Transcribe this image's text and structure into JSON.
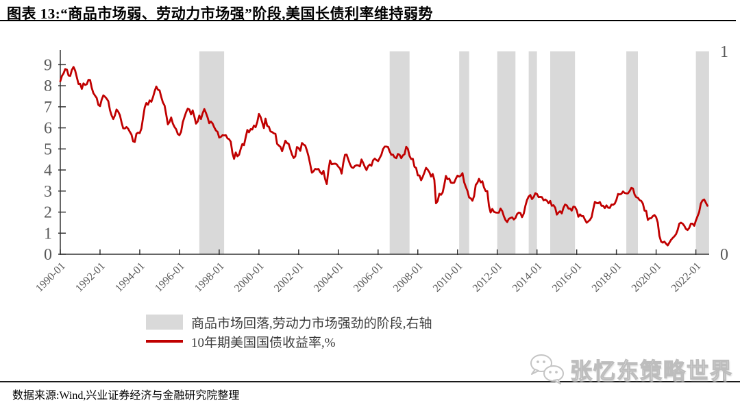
{
  "page": {
    "title": "图表 13:“商品市场弱、劳动力市场强”阶段,美国长债利率维持弱势"
  },
  "footer": {
    "source": "数据来源:Wind,兴业证券经济与金融研究院整理"
  },
  "watermark": {
    "icon": "wechat-icon",
    "label": "张忆东策略世界"
  },
  "chart_data": {
    "type": "line",
    "title": "图表 13:“商品市场弱、劳动力市场强”阶段,美国长债利率维持弱势",
    "grid": false,
    "legend_position": "bottom-center",
    "x_range": [
      1990.0,
      2022.67
    ],
    "x_tick_labels": [
      "1990-01",
      "1992-01",
      "1994-01",
      "1996-01",
      "1998-01",
      "2000-01",
      "2002-01",
      "2004-01",
      "2006-01",
      "2008-01",
      "2010-01",
      "2012-01",
      "2014-01",
      "2016-01",
      "2018-01",
      "2020-01",
      "2022-01"
    ],
    "left_axis": {
      "ticks": [
        0,
        1,
        2,
        3,
        4,
        5,
        6,
        7,
        8,
        9
      ],
      "range": [
        0,
        9.63
      ]
    },
    "right_axis": {
      "ticks": [
        0,
        1
      ],
      "range": [
        0,
        1
      ]
    },
    "band_color": "#d9d9d9",
    "bands": [
      {
        "start": "1997-01",
        "end": "1998-03"
      },
      {
        "start": "2006-08",
        "end": "2007-07"
      },
      {
        "start": "2010-02",
        "end": "2010-07"
      },
      {
        "start": "2012-01",
        "end": "2012-11"
      },
      {
        "start": "2013-08",
        "end": "2013-12"
      },
      {
        "start": "2014-09",
        "end": "2015-11"
      },
      {
        "start": "2018-07",
        "end": "2019-01"
      },
      {
        "start": "2022-01",
        "end": "2022-08"
      }
    ],
    "legend": [
      {
        "swatch": "band",
        "label": "商品市场回落,劳动力市场强劲的阶段,右轴"
      },
      {
        "swatch": "line",
        "label": "10年期美国国债收益率,%"
      }
    ],
    "series": [
      {
        "name": "10年期美国国债收益率,%",
        "color": "#c00000",
        "axis": "left",
        "start": "1990-01",
        "freq": "monthly",
        "values": [
          8.21,
          8.47,
          8.59,
          8.79,
          8.76,
          8.48,
          8.47,
          8.75,
          8.89,
          8.72,
          8.39,
          8.08,
          8.09,
          7.85,
          8.11,
          8.04,
          8.07,
          8.28,
          8.27,
          7.9,
          7.65,
          7.53,
          7.42,
          7.09,
          7.03,
          7.34,
          7.54,
          7.48,
          7.39,
          7.26,
          6.84,
          6.59,
          6.42,
          6.59,
          6.87,
          6.77,
          6.6,
          6.26,
          5.98,
          5.97,
          6.04,
          5.96,
          5.81,
          5.68,
          5.36,
          5.33,
          5.72,
          5.77,
          5.75,
          5.97,
          6.48,
          6.97,
          7.18,
          7.1,
          7.3,
          7.24,
          7.46,
          7.74,
          7.96,
          7.81,
          7.78,
          7.47,
          7.2,
          7.06,
          6.63,
          6.17,
          6.28,
          6.49,
          6.2,
          6.04,
          5.93,
          5.71,
          5.65,
          5.81,
          6.27,
          6.51,
          6.74,
          6.91,
          6.87,
          6.64,
          6.83,
          6.53,
          6.2,
          6.3,
          6.58,
          6.42,
          6.69,
          6.89,
          6.71,
          6.49,
          6.22,
          6.3,
          6.21,
          6.03,
          5.88,
          5.81,
          5.54,
          5.57,
          5.65,
          5.64,
          5.65,
          5.5,
          5.46,
          5.34,
          4.81,
          4.53,
          4.83,
          4.65,
          4.72,
          5.0,
          5.23,
          5.18,
          5.54,
          5.9,
          5.79,
          5.94,
          5.92,
          6.11,
          6.03,
          6.28,
          6.66,
          6.52,
          6.26,
          5.99,
          6.44,
          6.1,
          6.05,
          5.83,
          5.8,
          5.74,
          5.72,
          5.24,
          5.16,
          5.1,
          4.89,
          5.14,
          5.39,
          5.28,
          5.24,
          4.97,
          4.73,
          4.57,
          4.65,
          5.09,
          5.04,
          4.91,
          5.28,
          5.21,
          5.16,
          4.93,
          4.65,
          4.26,
          3.87,
          3.94,
          4.05,
          4.03,
          4.05,
          3.9,
          3.81,
          3.96,
          3.57,
          3.33,
          3.98,
          4.45,
          4.27,
          4.29,
          4.3,
          4.27,
          4.15,
          4.08,
          3.83,
          4.35,
          4.72,
          4.73,
          4.5,
          4.28,
          4.13,
          4.1,
          4.19,
          4.23,
          4.22,
          4.17,
          4.5,
          4.34,
          4.14,
          4.0,
          4.18,
          4.26,
          4.2,
          4.46,
          4.54,
          4.47,
          4.42,
          4.57,
          4.72,
          4.99,
          5.11,
          5.11,
          5.09,
          4.88,
          4.72,
          4.73,
          4.6,
          4.56,
          4.76,
          4.72,
          4.56,
          4.69,
          4.75,
          5.1,
          5.0,
          4.67,
          4.52,
          4.53,
          4.15,
          4.1,
          3.74,
          3.74,
          3.51,
          3.68,
          3.88,
          4.1,
          4.01,
          3.89,
          3.69,
          3.81,
          3.53,
          2.42,
          2.52,
          2.87,
          2.82,
          2.93,
          3.29,
          3.72,
          3.56,
          3.59,
          3.4,
          3.39,
          3.4,
          3.59,
          3.73,
          3.69,
          3.73,
          3.85,
          3.42,
          3.2,
          3.01,
          2.7,
          2.65,
          2.54,
          2.76,
          3.29,
          3.39,
          3.58,
          3.41,
          3.46,
          3.17,
          3.0,
          3.0,
          2.3,
          1.98,
          2.15,
          2.01,
          1.98,
          1.97,
          1.97,
          2.17,
          2.05,
          1.8,
          1.62,
          1.53,
          1.68,
          1.72,
          1.75,
          1.65,
          1.72,
          1.91,
          1.98,
          1.96,
          1.76,
          1.93,
          2.3,
          2.58,
          2.74,
          2.81,
          2.62,
          2.72,
          2.9,
          2.86,
          2.71,
          2.72,
          2.71,
          2.56,
          2.6,
          2.54,
          2.42,
          2.53,
          2.3,
          2.33,
          2.21,
          1.88,
          1.98,
          2.04,
          1.94,
          2.2,
          2.36,
          2.32,
          2.17,
          2.17,
          2.07,
          2.26,
          2.24,
          2.09,
          1.78,
          1.89,
          1.81,
          1.81,
          1.64,
          1.5,
          1.56,
          1.63,
          1.76,
          2.14,
          2.49,
          2.43,
          2.42,
          2.48,
          2.3,
          2.3,
          2.19,
          2.32,
          2.21,
          2.2,
          2.36,
          2.35,
          2.4,
          2.58,
          2.86,
          2.84,
          2.87,
          2.98,
          2.91,
          2.89,
          2.89,
          3.0,
          3.15,
          3.12,
          2.83,
          2.71,
          2.68,
          2.57,
          2.53,
          2.4,
          2.07,
          2.06,
          1.63,
          1.7,
          1.71,
          1.81,
          1.86,
          1.76,
          1.5,
          0.87,
          0.6,
          0.55,
          0.6,
          0.5,
          0.42,
          0.55,
          0.68,
          0.77,
          0.85,
          0.95,
          1.15,
          1.45,
          1.5,
          1.45,
          1.35,
          1.2,
          1.15,
          1.25,
          1.45,
          1.45,
          1.35,
          1.6,
          1.8,
          2.0,
          2.4,
          2.55,
          2.6,
          2.45,
          2.3
        ]
      }
    ]
  }
}
